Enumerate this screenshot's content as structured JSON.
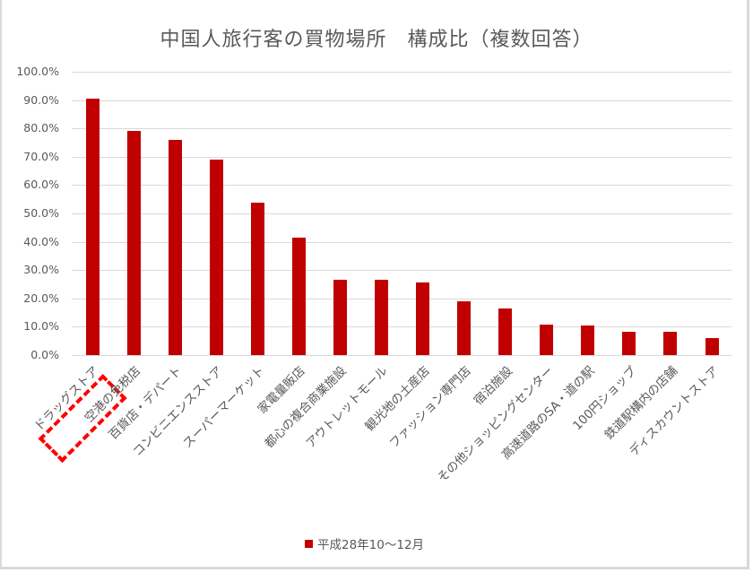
{
  "chart_data": {
    "type": "bar",
    "title": "中国人旅行客の買物場所　構成比（複数回答）",
    "xlabel": "",
    "ylabel": "",
    "ylim": [
      0,
      100
    ],
    "y_ticks": [
      "0.0%",
      "10.0%",
      "20.0%",
      "30.0%",
      "40.0%",
      "50.0%",
      "60.0%",
      "70.0%",
      "80.0%",
      "90.0%",
      "100.0%"
    ],
    "grid": true,
    "legend_position": "bottom",
    "categories": [
      "ドラッグストア",
      "空港の免税店",
      "百貨店・デパート",
      "コンビニエンスストア",
      "スーパーマーケット",
      "家電量販店",
      "都心の複合商業施設",
      "アウトレットモール",
      "観光地の土産店",
      "ファッション専門店",
      "宿泊施設",
      "その他ショッピングセンター",
      "高速道路のSA・道の駅",
      "100円ショップ",
      "鉄道駅構内の店舗",
      "ディスカウントストア"
    ],
    "series": [
      {
        "name": "平成28年10～12月",
        "color": "#c00000",
        "values": [
          90.5,
          79.1,
          76.0,
          69.0,
          53.8,
          41.5,
          26.6,
          26.6,
          25.6,
          19.0,
          16.5,
          10.8,
          10.4,
          8.2,
          8.2,
          6.0
        ]
      }
    ],
    "annotations": [
      {
        "type": "dashed-box",
        "target": "ドラッグストア",
        "color": "#ff0000"
      }
    ]
  }
}
